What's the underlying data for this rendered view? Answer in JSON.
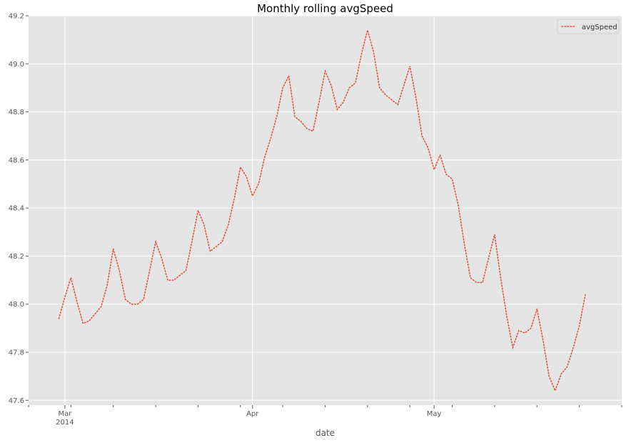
{
  "chart_data": {
    "type": "line",
    "title": "Monthly rolling avgSpeed",
    "xlabel": "date",
    "ylabel": "",
    "ylim": [
      47.58,
      49.2
    ],
    "xlim": [
      "2014-02-23",
      "2014-06-01"
    ],
    "grid": true,
    "legend_position": "top-right",
    "y_ticks": [
      "47.6",
      "47.8",
      "48.0",
      "48.2",
      "48.4",
      "48.6",
      "48.8",
      "49.0",
      "49.2"
    ],
    "x_ticks": [
      {
        "date": "2014-03-01",
        "label": "Mar",
        "sublabel": "2014"
      },
      {
        "date": "2014-04-01",
        "label": "Apr",
        "sublabel": ""
      },
      {
        "date": "2014-05-01",
        "label": "May",
        "sublabel": ""
      }
    ],
    "series": [
      {
        "name": "avgSpeed",
        "color": "#E24A33",
        "line_style": "dotted",
        "points": [
          [
            "2014-02-28",
            47.94
          ],
          [
            "2014-03-01",
            48.03
          ],
          [
            "2014-03-02",
            48.11
          ],
          [
            "2014-03-03",
            48.01
          ],
          [
            "2014-03-04",
            47.92
          ],
          [
            "2014-03-05",
            47.93
          ],
          [
            "2014-03-06",
            47.96
          ],
          [
            "2014-03-07",
            47.99
          ],
          [
            "2014-03-08",
            48.08
          ],
          [
            "2014-03-09",
            48.23
          ],
          [
            "2014-03-10",
            48.14
          ],
          [
            "2014-03-11",
            48.02
          ],
          [
            "2014-03-12",
            48.0
          ],
          [
            "2014-03-13",
            48.0
          ],
          [
            "2014-03-14",
            48.02
          ],
          [
            "2014-03-15",
            48.14
          ],
          [
            "2014-03-16",
            48.26
          ],
          [
            "2014-03-17",
            48.19
          ],
          [
            "2014-03-18",
            48.1
          ],
          [
            "2014-03-19",
            48.1
          ],
          [
            "2014-03-20",
            48.12
          ],
          [
            "2014-03-21",
            48.14
          ],
          [
            "2014-03-22",
            48.26
          ],
          [
            "2014-03-23",
            48.39
          ],
          [
            "2014-03-24",
            48.33
          ],
          [
            "2014-03-25",
            48.22
          ],
          [
            "2014-03-26",
            48.24
          ],
          [
            "2014-03-27",
            48.26
          ],
          [
            "2014-03-28",
            48.33
          ],
          [
            "2014-03-29",
            48.44
          ],
          [
            "2014-03-30",
            48.57
          ],
          [
            "2014-03-31",
            48.53
          ],
          [
            "2014-04-01",
            48.45
          ],
          [
            "2014-04-02",
            48.5
          ],
          [
            "2014-04-03",
            48.61
          ],
          [
            "2014-04-04",
            48.69
          ],
          [
            "2014-04-05",
            48.78
          ],
          [
            "2014-04-06",
            48.9
          ],
          [
            "2014-04-07",
            48.95
          ],
          [
            "2014-04-08",
            48.78
          ],
          [
            "2014-04-09",
            48.76
          ],
          [
            "2014-04-10",
            48.73
          ],
          [
            "2014-04-11",
            48.72
          ],
          [
            "2014-04-12",
            48.84
          ],
          [
            "2014-04-13",
            48.97
          ],
          [
            "2014-04-14",
            48.91
          ],
          [
            "2014-04-15",
            48.81
          ],
          [
            "2014-04-16",
            48.84
          ],
          [
            "2014-04-17",
            48.9
          ],
          [
            "2014-04-18",
            48.92
          ],
          [
            "2014-04-19",
            49.04
          ],
          [
            "2014-04-20",
            49.14
          ],
          [
            "2014-04-21",
            49.05
          ],
          [
            "2014-04-22",
            48.9
          ],
          [
            "2014-04-23",
            48.87
          ],
          [
            "2014-04-24",
            48.85
          ],
          [
            "2014-04-25",
            48.83
          ],
          [
            "2014-04-26",
            48.91
          ],
          [
            "2014-04-27",
            48.99
          ],
          [
            "2014-04-28",
            48.86
          ],
          [
            "2014-04-29",
            48.7
          ],
          [
            "2014-04-30",
            48.65
          ],
          [
            "2014-05-01",
            48.56
          ],
          [
            "2014-05-02",
            48.62
          ],
          [
            "2014-05-03",
            48.54
          ],
          [
            "2014-05-04",
            48.52
          ],
          [
            "2014-05-05",
            48.41
          ],
          [
            "2014-05-06",
            48.25
          ],
          [
            "2014-05-07",
            48.11
          ],
          [
            "2014-05-08",
            48.09
          ],
          [
            "2014-05-09",
            48.09
          ],
          [
            "2014-05-10",
            48.19
          ],
          [
            "2014-05-11",
            48.29
          ],
          [
            "2014-05-12",
            48.11
          ],
          [
            "2014-05-13",
            47.95
          ],
          [
            "2014-05-14",
            47.82
          ],
          [
            "2014-05-15",
            47.89
          ],
          [
            "2014-05-16",
            47.88
          ],
          [
            "2014-05-17",
            47.9
          ],
          [
            "2014-05-18",
            47.98
          ],
          [
            "2014-05-19",
            47.85
          ],
          [
            "2014-05-20",
            47.7
          ],
          [
            "2014-05-21",
            47.64
          ],
          [
            "2014-05-22",
            47.71
          ],
          [
            "2014-05-23",
            47.74
          ],
          [
            "2014-05-24",
            47.82
          ],
          [
            "2014-05-25",
            47.91
          ],
          [
            "2014-05-26",
            48.04
          ]
        ]
      }
    ]
  },
  "colors": {
    "plot_background": "#E5E5E5",
    "grid": "#FFFFFF",
    "series_line": "#E24A33"
  }
}
